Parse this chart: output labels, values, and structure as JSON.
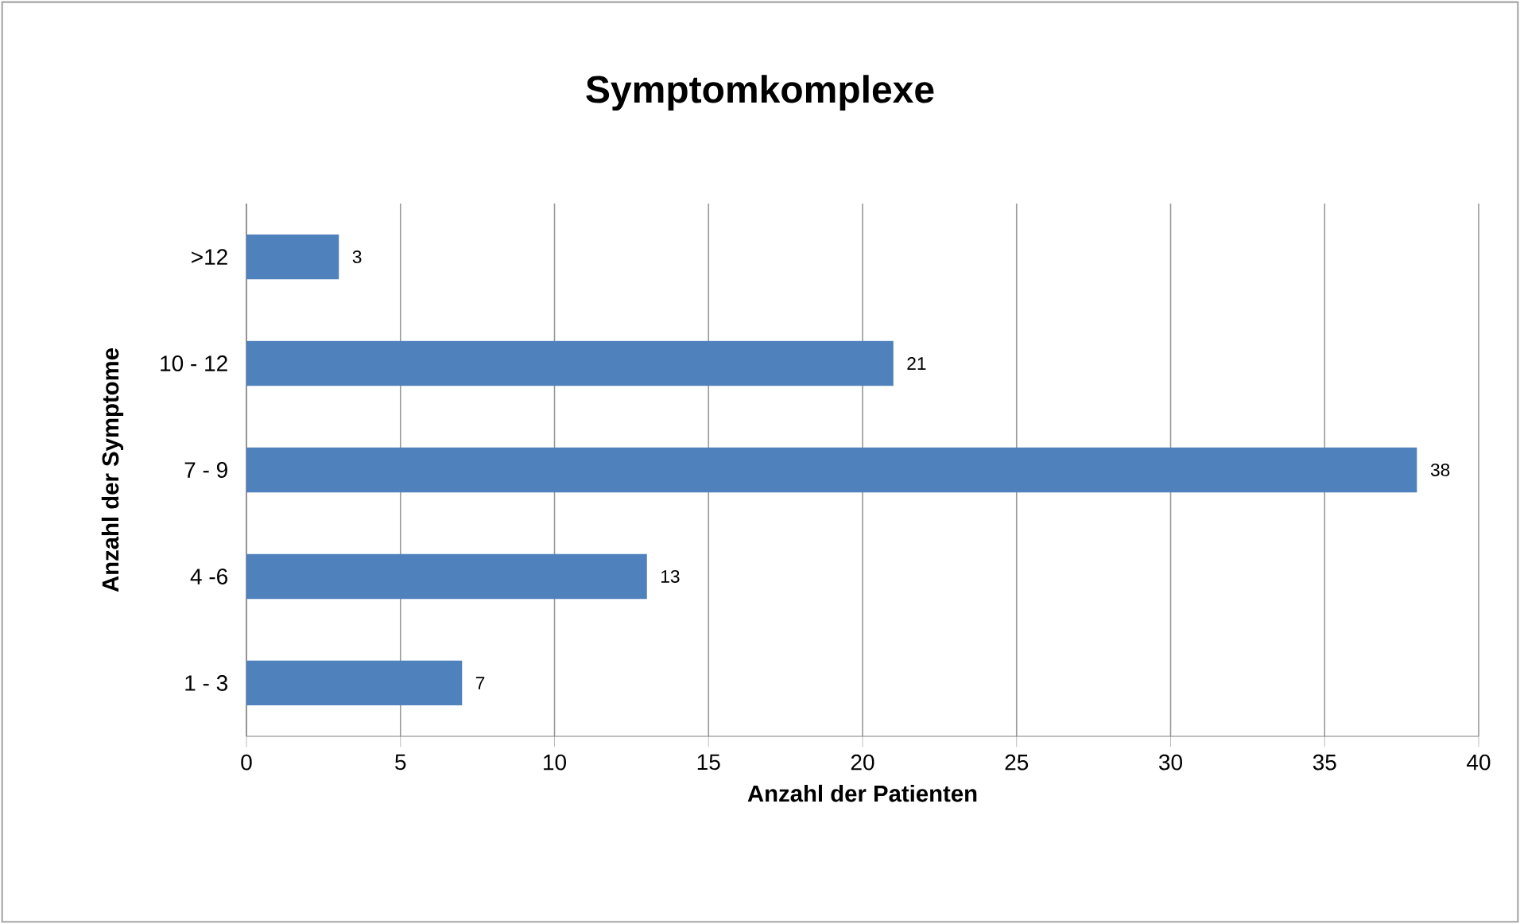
{
  "chart_data": {
    "type": "bar",
    "orientation": "horizontal",
    "title": "Symptomkomplexe",
    "xlabel": "Anzahl der Patienten",
    "ylabel": "Anzahl der Symptome",
    "categories": [
      ">12",
      "10 - 12",
      "7 - 9",
      "4 -6",
      "1 - 3"
    ],
    "values": [
      3,
      21,
      38,
      13,
      7
    ],
    "color": "#4f81bd",
    "xlim": [
      0,
      40
    ],
    "xticks": [
      0,
      5,
      10,
      15,
      20,
      25,
      30,
      35,
      40
    ],
    "grid": "x",
    "data_labels": true
  }
}
